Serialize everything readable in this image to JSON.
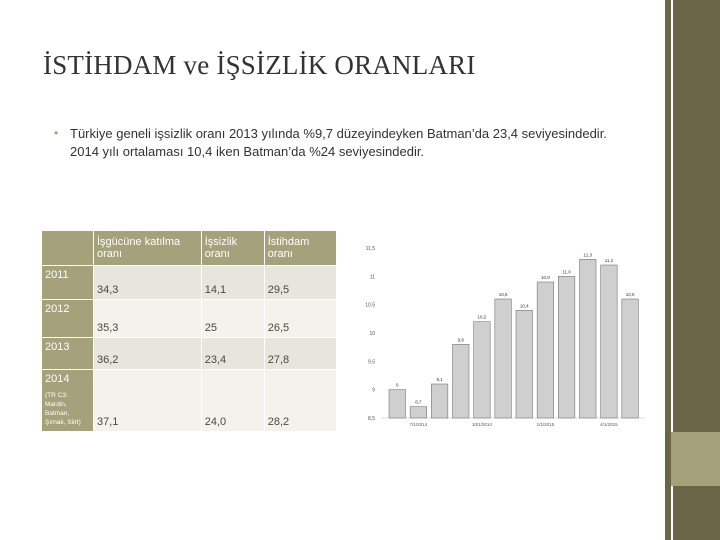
{
  "slide": {
    "title": "İSTİHDAM ve İŞSİZLİK ORANLARI",
    "bullet": "Türkiye geneli işsizlik oranı 2013 yılında %9,7 düzeyindeyken Batman’da 23,4 seviyesindedir. 2014 yılı ortalaması 10,4 iken Batman’da %24 seviyesindedir.",
    "accent_color": "#a5a17a",
    "sidebar_color": "#6b6547"
  },
  "table": {
    "headers": [
      "",
      "İşgücüne katılma oranı",
      "İşsizlik oranı",
      "İstihdam oranı"
    ],
    "rows": [
      {
        "year": "2011",
        "note": "",
        "values": [
          "34,3",
          "14,1",
          "29,5"
        ]
      },
      {
        "year": "2012",
        "note": "",
        "values": [
          "35,3",
          "25",
          "26,5"
        ]
      },
      {
        "year": "2013",
        "note": "",
        "values": [
          "36,2",
          "23,4",
          "27,8"
        ]
      },
      {
        "year": "2014",
        "note": "(TR C3: Mardin, Batman, Şırnak, Siirt)",
        "values": [
          "37,1",
          "24,0",
          "28,2"
        ]
      }
    ]
  },
  "chart_data": {
    "type": "bar",
    "ylim": [
      8.5,
      11.5
    ],
    "yticks": [
      "8,5",
      "9",
      "9,5",
      "10",
      "10,5",
      "11",
      "11,5"
    ],
    "ytick_values": [
      8.5,
      9,
      9.5,
      10,
      10.5,
      11,
      11.5
    ],
    "values": [
      9.0,
      8.7,
      9.1,
      9.8,
      10.2,
      10.6,
      10.4,
      10.9,
      11.0,
      11.3,
      11.2,
      10.6
    ],
    "value_labels": [
      "9",
      "8,7",
      "9,1",
      "9,8",
      "10,2",
      "10,6",
      "10,4",
      "10,9",
      "11,0",
      "11,3",
      "11,2",
      "10,6"
    ],
    "x_tick_labels": [
      "7/1/2014",
      "10/1/2014",
      "1/1/2015",
      "4/1/2015"
    ],
    "x_tick_positions": [
      1,
      4,
      7,
      10
    ],
    "bar_color": "#cfcfcf",
    "label_color": "#333333"
  }
}
